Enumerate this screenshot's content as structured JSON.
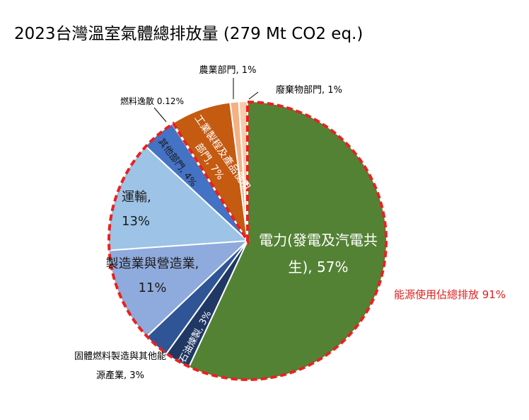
{
  "chart_data": {
    "type": "pie",
    "title": "2023台灣溫室氣體總排放量 (279 Mt CO2 eq.)",
    "values": [
      57,
      3,
      3,
      11,
      13,
      4,
      0.12,
      7,
      1,
      1
    ],
    "value_labels": [
      "電力(發電及汽電共生), 57%",
      "石油煉製, 3%",
      "固體燃料製造與其他能源產業, 3%",
      "製造業與營造業, 11%",
      "運輸, 13%",
      "其他部門, 4%",
      "燃料逸散 0.12%",
      "工業製程及產品使用部門, 7%",
      "農業部門, 1%",
      "廢棄物部門, 1%"
    ],
    "colors": [
      "#548235",
      "#203864",
      "#2f5597",
      "#8faadc",
      "#9dc3e6",
      "#4472c4",
      "#4472c4",
      "#c55a11",
      "#f4b183",
      "#f8cbad"
    ],
    "annotation": "能源使用佔總排放 91%"
  }
}
